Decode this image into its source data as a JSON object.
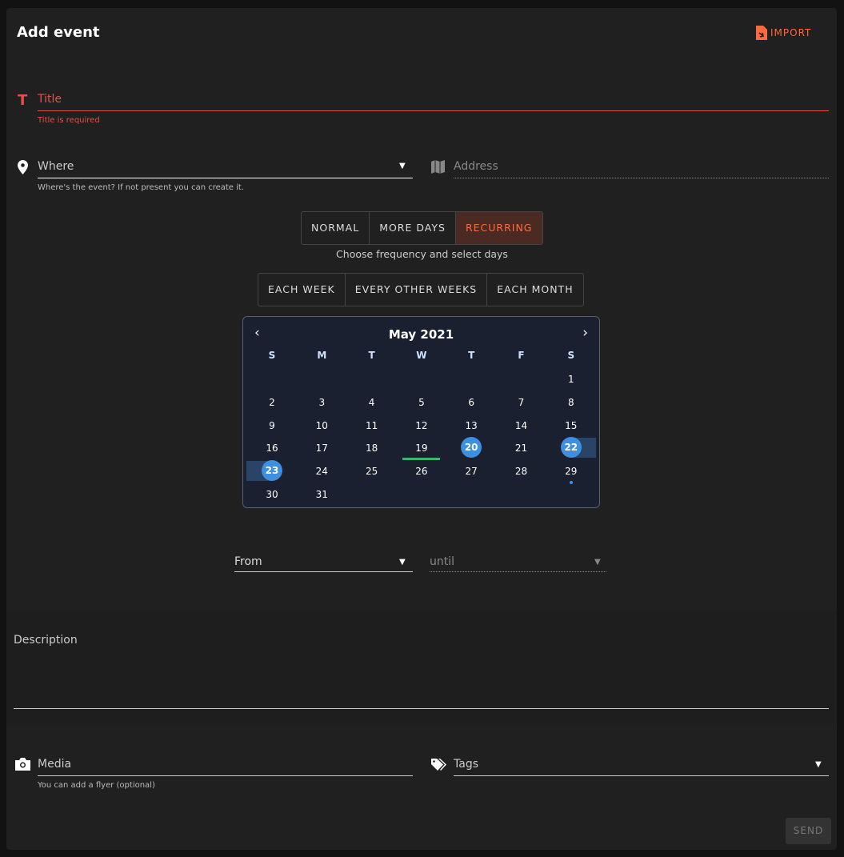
{
  "header": {
    "title": "Add event",
    "import_label": "IMPORT"
  },
  "title_field": {
    "placeholder": "Title",
    "error": "Title is required"
  },
  "where_field": {
    "placeholder": "Where",
    "hint": "Where's the event? If not present you can create it."
  },
  "address_field": {
    "placeholder": "Address"
  },
  "mode_tabs": [
    {
      "label": "NORMAL"
    },
    {
      "label": "MORE DAYS"
    },
    {
      "label": "RECURRING",
      "active": true
    }
  ],
  "mode_hint": "Choose frequency and select days",
  "frequency_tabs": [
    {
      "label": "EACH WEEK"
    },
    {
      "label": "EVERY OTHER WEEKS"
    },
    {
      "label": "EACH MONTH"
    }
  ],
  "calendar": {
    "month": "May 2021",
    "weekdays": [
      "S",
      "M",
      "T",
      "W",
      "T",
      "F",
      "S"
    ],
    "first_weekday": 6,
    "days": 31,
    "today": 19,
    "selected": [
      20,
      22,
      23
    ],
    "range_highlight": [
      22,
      23
    ],
    "dot_days": [
      29
    ]
  },
  "from_field": {
    "label": "From"
  },
  "until_field": {
    "label": "until"
  },
  "description": {
    "label": "Description"
  },
  "media_field": {
    "placeholder": "Media",
    "hint": "You can add a flyer (optional)"
  },
  "tags_field": {
    "placeholder": "Tags"
  },
  "send_label": "SEND",
  "colors": {
    "accent": "#ff6a3d",
    "error": "#e0524a",
    "selected": "#3d8fe0",
    "today": "#3cb371"
  }
}
